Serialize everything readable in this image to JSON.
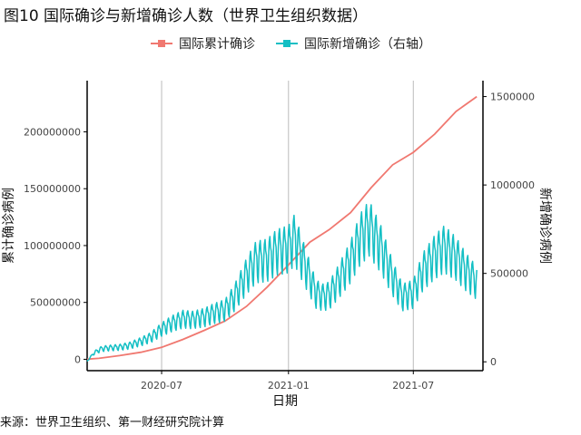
{
  "title": "图10 国际确诊与新增确诊人数（世界卫生组织数据）",
  "source": "来源：世界卫生组织、第一财经研究院计算",
  "colors": {
    "series1": "#F07870",
    "series2": "#14BFC4",
    "grid": "#BBBBBB",
    "axis": "#000000"
  },
  "chart_data": {
    "type": "line",
    "xlabel": "日期",
    "ylabel_left": "累计确诊病例",
    "ylabel_right": "新增确诊病例",
    "x_ticks": [
      "2020-07",
      "2021-01",
      "2021-07"
    ],
    "y_left_ticks": [
      "0",
      "50000000",
      "100000000",
      "150000000",
      "200000000"
    ],
    "y_right_ticks": [
      "0",
      "500000",
      "1000000",
      "1500000"
    ],
    "x_range": [
      "2020-03-15",
      "2021-10-10"
    ],
    "y_left_range": [
      -10000000,
      245000000
    ],
    "y_right_range": [
      -50000,
      1590000
    ],
    "grid": "vertical lines at x ticks",
    "legend_position": "top",
    "series": [
      {
        "name": "国际累计确诊",
        "axis": "left",
        "points": [
          [
            "2020-03-15",
            150000
          ],
          [
            "2020-04-01",
            800000
          ],
          [
            "2020-05-01",
            3200000
          ],
          [
            "2020-06-01",
            6200000
          ],
          [
            "2020-07-01",
            10500000
          ],
          [
            "2020-08-01",
            17500000
          ],
          [
            "2020-09-01",
            25500000
          ],
          [
            "2020-10-01",
            33700000
          ],
          [
            "2020-11-01",
            46500000
          ],
          [
            "2020-12-01",
            63500000
          ],
          [
            "2021-01-01",
            83000000
          ],
          [
            "2021-02-01",
            103000000
          ],
          [
            "2021-03-01",
            114000000
          ],
          [
            "2021-04-01",
            129000000
          ],
          [
            "2021-05-01",
            151000000
          ],
          [
            "2021-06-01",
            171000000
          ],
          [
            "2021-07-01",
            182000000
          ],
          [
            "2021-08-01",
            198000000
          ],
          [
            "2021-09-01",
            218000000
          ],
          [
            "2021-10-01",
            231000000
          ]
        ]
      },
      {
        "name": "国际新增确诊（右轴）",
        "axis": "right",
        "points": [
          [
            "2020-03-15",
            3000
          ],
          [
            "2020-03-25",
            55000
          ],
          [
            "2020-04-05",
            80000
          ],
          [
            "2020-04-15",
            85000
          ],
          [
            "2020-05-01",
            90000
          ],
          [
            "2020-05-15",
            100000
          ],
          [
            "2020-06-01",
            125000
          ],
          [
            "2020-06-15",
            150000
          ],
          [
            "2020-07-01",
            200000
          ],
          [
            "2020-07-15",
            235000
          ],
          [
            "2020-08-01",
            265000
          ],
          [
            "2020-08-15",
            260000
          ],
          [
            "2020-09-01",
            275000
          ],
          [
            "2020-09-15",
            300000
          ],
          [
            "2020-10-01",
            320000
          ],
          [
            "2020-10-15",
            400000
          ],
          [
            "2020-11-01",
            530000
          ],
          [
            "2020-11-15",
            620000
          ],
          [
            "2020-12-01",
            630000
          ],
          [
            "2020-12-15",
            680000
          ],
          [
            "2021-01-01",
            700000
          ],
          [
            "2021-01-10",
            760000
          ],
          [
            "2021-01-25",
            590000
          ],
          [
            "2021-02-10",
            420000
          ],
          [
            "2021-02-20",
            400000
          ],
          [
            "2021-03-01",
            410000
          ],
          [
            "2021-03-15",
            500000
          ],
          [
            "2021-04-01",
            620000
          ],
          [
            "2021-04-15",
            760000
          ],
          [
            "2021-04-28",
            830000
          ],
          [
            "2021-05-15",
            700000
          ],
          [
            "2021-06-01",
            520000
          ],
          [
            "2021-06-15",
            400000
          ],
          [
            "2021-07-01",
            420000
          ],
          [
            "2021-07-15",
            560000
          ],
          [
            "2021-08-01",
            650000
          ],
          [
            "2021-08-15",
            700000
          ],
          [
            "2021-09-01",
            640000
          ],
          [
            "2021-09-15",
            560000
          ],
          [
            "2021-10-01",
            490000
          ]
        ]
      }
    ]
  }
}
